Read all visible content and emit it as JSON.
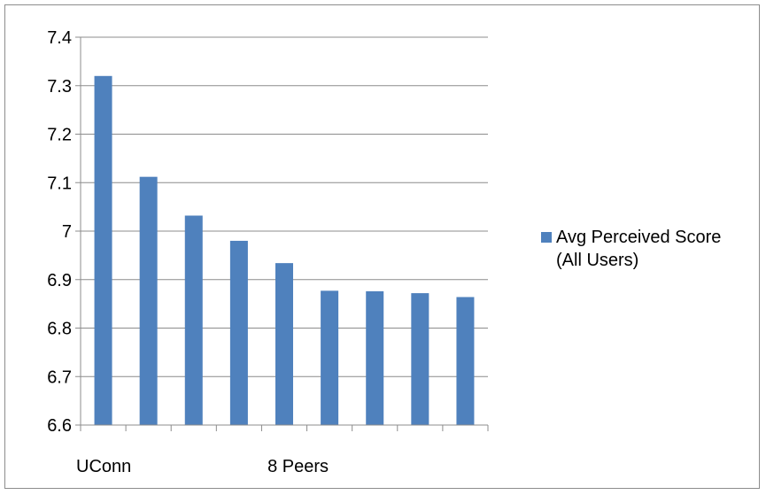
{
  "chart_data": {
    "type": "bar",
    "title": "",
    "xlabel": "",
    "ylabel": "",
    "ylim": [
      6.6,
      7.4
    ],
    "yticks": [
      6.6,
      6.7,
      6.8,
      6.9,
      7,
      7.1,
      7.2,
      7.3,
      7.4
    ],
    "ytick_labels": [
      "6.6",
      "6.7",
      "6.8",
      "6.9",
      "7",
      "7.1",
      "7.2",
      "7.3",
      "7.4"
    ],
    "grid": true,
    "legend_position": "right",
    "categories": [
      "UConn",
      "",
      "",
      "",
      "",
      "",
      "",
      "",
      ""
    ],
    "category_labels": [
      {
        "text": "UConn",
        "slot": 0
      },
      {
        "text": "8 Peers",
        "slot": 4
      }
    ],
    "series": [
      {
        "name": "Avg Perceived Score (All Users)",
        "legend_lines": [
          "Avg Perceived Score",
          "(All Users)"
        ],
        "color": "#4f81bd",
        "values": [
          7.32,
          7.112,
          7.032,
          6.98,
          6.934,
          6.877,
          6.876,
          6.872,
          6.864
        ]
      }
    ]
  }
}
